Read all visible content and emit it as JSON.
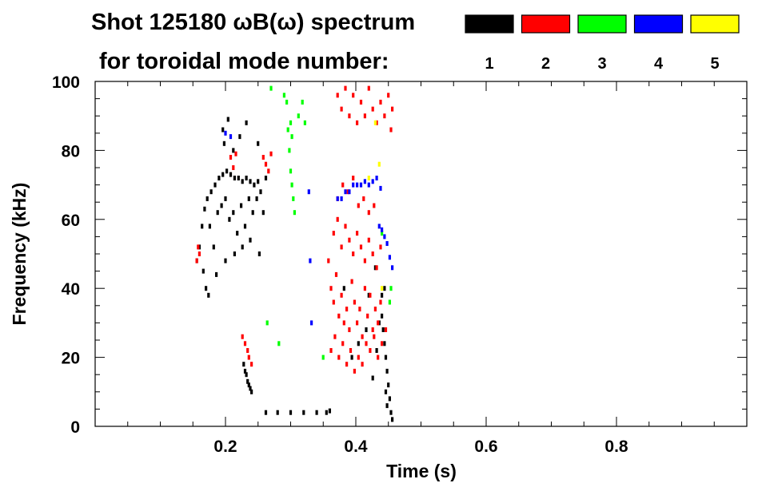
{
  "title_line1": "Shot 125180 ωB(ω) spectrum",
  "title_line2": "for toroidal mode number:",
  "chart_data": {
    "type": "scatter",
    "title": "Shot 125180 ωB(ω) spectrum for toroidal mode number",
    "xlabel": "Time (s)",
    "ylabel": "Frequency (kHz)",
    "xlim": [
      0.0,
      1.0
    ],
    "ylim": [
      0,
      100
    ],
    "xticks": [
      0.2,
      0.4,
      0.6,
      0.8
    ],
    "xtick_labels": [
      "0.2",
      "0.4",
      "0.6",
      "0.8"
    ],
    "yticks": [
      0,
      20,
      40,
      60,
      80,
      100
    ],
    "ytick_labels": [
      "0",
      "20",
      "40",
      "60",
      "80",
      "100"
    ],
    "grid": false,
    "legend": [
      {
        "label": "1",
        "color": "#000000"
      },
      {
        "label": "2",
        "color": "#ff0000"
      },
      {
        "label": "3",
        "color": "#00ff00"
      },
      {
        "label": "4",
        "color": "#0000ff"
      },
      {
        "label": "5",
        "color": "#ffff00"
      }
    ],
    "series": [
      {
        "name": "1",
        "color": "#000000",
        "points": [
          [
            0.156,
            48
          ],
          [
            0.16,
            52
          ],
          [
            0.164,
            58
          ],
          [
            0.168,
            63
          ],
          [
            0.172,
            66
          ],
          [
            0.178,
            68
          ],
          [
            0.184,
            70
          ],
          [
            0.19,
            72
          ],
          [
            0.196,
            73
          ],
          [
            0.202,
            74
          ],
          [
            0.208,
            73
          ],
          [
            0.214,
            72
          ],
          [
            0.22,
            72
          ],
          [
            0.226,
            71
          ],
          [
            0.232,
            72
          ],
          [
            0.238,
            71
          ],
          [
            0.244,
            70
          ],
          [
            0.25,
            71
          ],
          [
            0.166,
            45
          ],
          [
            0.17,
            40
          ],
          [
            0.176,
            58
          ],
          [
            0.182,
            52
          ],
          [
            0.188,
            62
          ],
          [
            0.194,
            64
          ],
          [
            0.2,
            66
          ],
          [
            0.206,
            60
          ],
          [
            0.212,
            62
          ],
          [
            0.218,
            56
          ],
          [
            0.224,
            64
          ],
          [
            0.23,
            58
          ],
          [
            0.236,
            66
          ],
          [
            0.242,
            62
          ],
          [
            0.248,
            66
          ],
          [
            0.254,
            68
          ],
          [
            0.258,
            62
          ],
          [
            0.262,
            72
          ],
          [
            0.196,
            86
          ],
          [
            0.198,
            82
          ],
          [
            0.204,
            89
          ],
          [
            0.212,
            80
          ],
          [
            0.222,
            84
          ],
          [
            0.232,
            88
          ],
          [
            0.25,
            82
          ],
          [
            0.174,
            38
          ],
          [
            0.186,
            44
          ],
          [
            0.2,
            48
          ],
          [
            0.214,
            50
          ],
          [
            0.226,
            52
          ],
          [
            0.238,
            54
          ],
          [
            0.252,
            50
          ],
          [
            0.228,
            18
          ],
          [
            0.23,
            16
          ],
          [
            0.232,
            15
          ],
          [
            0.234,
            13
          ],
          [
            0.236,
            12
          ],
          [
            0.238,
            11
          ],
          [
            0.24,
            10
          ],
          [
            0.262,
            4
          ],
          [
            0.28,
            4
          ],
          [
            0.3,
            4
          ],
          [
            0.32,
            4
          ],
          [
            0.34,
            4
          ],
          [
            0.355,
            4
          ],
          [
            0.36,
            4.5
          ],
          [
            0.44,
            32
          ],
          [
            0.442,
            28
          ],
          [
            0.444,
            24
          ],
          [
            0.446,
            20
          ],
          [
            0.448,
            16
          ],
          [
            0.45,
            12
          ],
          [
            0.452,
            8
          ],
          [
            0.454,
            4
          ],
          [
            0.456,
            2
          ],
          [
            0.446,
            10
          ],
          [
            0.448,
            6
          ],
          [
            0.394,
            20
          ],
          [
            0.404,
            24
          ],
          [
            0.416,
            28
          ],
          [
            0.426,
            14
          ],
          [
            0.432,
            22
          ],
          [
            0.436,
            30
          ],
          [
            0.44,
            38
          ],
          [
            0.444,
            40
          ],
          [
            0.42,
            38
          ],
          [
            0.43,
            46
          ],
          [
            0.382,
            40
          ]
        ]
      },
      {
        "name": "2",
        "color": "#ff0000",
        "points": [
          [
            0.156,
            48
          ],
          [
            0.158,
            52
          ],
          [
            0.16,
            50
          ],
          [
            0.208,
            78
          ],
          [
            0.212,
            75
          ],
          [
            0.216,
            79
          ],
          [
            0.258,
            78
          ],
          [
            0.262,
            76
          ],
          [
            0.266,
            74
          ],
          [
            0.27,
            79
          ],
          [
            0.226,
            26
          ],
          [
            0.23,
            24
          ],
          [
            0.234,
            22
          ],
          [
            0.236,
            20
          ],
          [
            0.24,
            18
          ],
          [
            0.358,
            48
          ],
          [
            0.362,
            40
          ],
          [
            0.366,
            36
          ],
          [
            0.37,
            44
          ],
          [
            0.374,
            32
          ],
          [
            0.378,
            38
          ],
          [
            0.382,
            30
          ],
          [
            0.386,
            34
          ],
          [
            0.39,
            28
          ],
          [
            0.394,
            42
          ],
          [
            0.398,
            36
          ],
          [
            0.402,
            30
          ],
          [
            0.406,
            34
          ],
          [
            0.41,
            26
          ],
          [
            0.414,
            40
          ],
          [
            0.418,
            32
          ],
          [
            0.422,
            38
          ],
          [
            0.426,
            28
          ],
          [
            0.43,
            34
          ],
          [
            0.434,
            30
          ],
          [
            0.438,
            36
          ],
          [
            0.362,
            22
          ],
          [
            0.368,
            26
          ],
          [
            0.374,
            20
          ],
          [
            0.38,
            24
          ],
          [
            0.386,
            18
          ],
          [
            0.392,
            22
          ],
          [
            0.398,
            16
          ],
          [
            0.404,
            20
          ],
          [
            0.41,
            18
          ],
          [
            0.416,
            24
          ],
          [
            0.422,
            22
          ],
          [
            0.428,
            26
          ],
          [
            0.434,
            20
          ],
          [
            0.44,
            24
          ],
          [
            0.446,
            28
          ],
          [
            0.366,
            56
          ],
          [
            0.372,
            60
          ],
          [
            0.378,
            52
          ],
          [
            0.384,
            58
          ],
          [
            0.39,
            54
          ],
          [
            0.396,
            50
          ],
          [
            0.402,
            56
          ],
          [
            0.408,
            52
          ],
          [
            0.414,
            48
          ],
          [
            0.42,
            54
          ],
          [
            0.426,
            50
          ],
          [
            0.432,
            46
          ],
          [
            0.438,
            52
          ],
          [
            0.372,
            66
          ],
          [
            0.38,
            70
          ],
          [
            0.388,
            68
          ],
          [
            0.396,
            72
          ],
          [
            0.404,
            64
          ],
          [
            0.412,
            66
          ],
          [
            0.42,
            62
          ],
          [
            0.428,
            64
          ],
          [
            0.372,
            96
          ],
          [
            0.378,
            92
          ],
          [
            0.384,
            98
          ],
          [
            0.39,
            90
          ],
          [
            0.396,
            96
          ],
          [
            0.402,
            88
          ],
          [
            0.408,
            94
          ],
          [
            0.414,
            90
          ],
          [
            0.42,
            98
          ],
          [
            0.426,
            92
          ],
          [
            0.432,
            88
          ],
          [
            0.438,
            94
          ],
          [
            0.444,
            90
          ],
          [
            0.45,
            96
          ],
          [
            0.454,
            86
          ],
          [
            0.456,
            92
          ]
        ]
      },
      {
        "name": "3",
        "color": "#00ff00",
        "points": [
          [
            0.296,
            86
          ],
          [
            0.298,
            80
          ],
          [
            0.3,
            74
          ],
          [
            0.302,
            70
          ],
          [
            0.304,
            66
          ],
          [
            0.306,
            62
          ],
          [
            0.3,
            88
          ],
          [
            0.302,
            84
          ],
          [
            0.27,
            98
          ],
          [
            0.29,
            96
          ],
          [
            0.294,
            94
          ],
          [
            0.312,
            90
          ],
          [
            0.318,
            94
          ],
          [
            0.322,
            88
          ],
          [
            0.264,
            30
          ],
          [
            0.282,
            24
          ],
          [
            0.35,
            20
          ],
          [
            0.44,
            56
          ],
          [
            0.454,
            40
          ],
          [
            0.452,
            36
          ]
        ]
      },
      {
        "name": "4",
        "color": "#0000ff",
        "points": [
          [
            0.372,
            66
          ],
          [
            0.378,
            66
          ],
          [
            0.384,
            68
          ],
          [
            0.39,
            68
          ],
          [
            0.396,
            70
          ],
          [
            0.402,
            70
          ],
          [
            0.408,
            70
          ],
          [
            0.414,
            71
          ],
          [
            0.42,
            70
          ],
          [
            0.426,
            71
          ],
          [
            0.432,
            72
          ],
          [
            0.438,
            69
          ],
          [
            0.436,
            58
          ],
          [
            0.44,
            57
          ],
          [
            0.444,
            55
          ],
          [
            0.448,
            53
          ],
          [
            0.452,
            49
          ],
          [
            0.456,
            46
          ],
          [
            0.2,
            85
          ],
          [
            0.208,
            84
          ],
          [
            0.328,
            68
          ],
          [
            0.33,
            48
          ],
          [
            0.332,
            30
          ]
        ]
      },
      {
        "name": "5",
        "color": "#ffff00",
        "points": [
          [
            0.42,
            72
          ],
          [
            0.43,
            88
          ],
          [
            0.436,
            76
          ],
          [
            0.44,
            40
          ]
        ]
      }
    ]
  }
}
